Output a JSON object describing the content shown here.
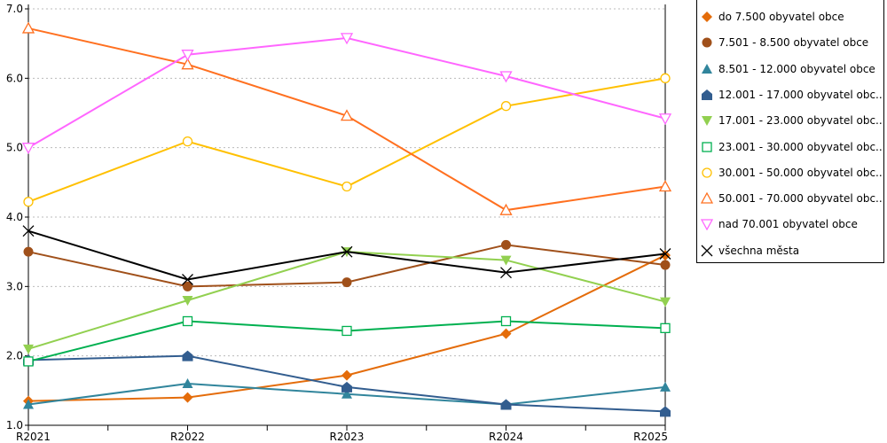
{
  "chart_data": {
    "type": "line",
    "categories": [
      "R2021",
      "R2022",
      "R2023",
      "R2024",
      "R2025"
    ],
    "ylim": [
      1.0,
      7.0
    ],
    "yticks": [
      "1.0",
      "2.0",
      "3.0",
      "4.0",
      "5.0",
      "6.0",
      "7.0"
    ],
    "grid": true,
    "legend_placement": "right",
    "series": [
      {
        "name": "do 7.500 obyvatel obce",
        "color": "#e46c0a",
        "marker": "diamond",
        "values": [
          1.35,
          1.4,
          1.72,
          2.32,
          3.45
        ]
      },
      {
        "name": "7.501 - 8.500 obyvatel obce",
        "color": "#a0501a",
        "marker": "circle-filled",
        "values": [
          3.5,
          3.0,
          3.06,
          3.6,
          3.31
        ]
      },
      {
        "name": "8.501 - 12.000 obyvatel obce",
        "color": "#31859c",
        "marker": "triangle-filled",
        "values": [
          1.3,
          1.6,
          1.45,
          1.3,
          1.55
        ]
      },
      {
        "name": "12.001 - 17.000 obyvatel obc...",
        "color": "#325d8f",
        "marker": "house-filled",
        "values": [
          1.94,
          2.0,
          1.55,
          1.3,
          1.2
        ]
      },
      {
        "name": "17.001 - 23.000 obyvatel obc...",
        "color": "#92d050",
        "marker": "triangle-down-filled",
        "values": [
          2.1,
          2.8,
          3.5,
          3.38,
          2.78
        ]
      },
      {
        "name": "23.001 - 30.000 obyvatel obc...",
        "color": "#00b050",
        "marker": "square-open",
        "values": [
          1.92,
          2.5,
          2.36,
          2.5,
          2.4
        ]
      },
      {
        "name": "30.001 - 50.000 obyvatel obc...",
        "color": "#ffc000",
        "marker": "circle-open",
        "values": [
          4.22,
          5.09,
          4.44,
          5.6,
          6.0
        ]
      },
      {
        "name": "50.001 - 70.000 obyvatel obc...",
        "color": "#ff7020",
        "marker": "triangle-open",
        "values": [
          6.72,
          6.2,
          5.46,
          4.1,
          4.44
        ]
      },
      {
        "name": "nad 70.001 obyvatel obce",
        "color": "#ff66ff",
        "marker": "triangle-down-open",
        "values": [
          5.0,
          6.34,
          6.58,
          6.03,
          5.42
        ]
      },
      {
        "name": "všechna města",
        "color": "#000000",
        "marker": "x",
        "values": [
          3.8,
          3.1,
          3.5,
          3.2,
          3.47
        ]
      }
    ]
  }
}
